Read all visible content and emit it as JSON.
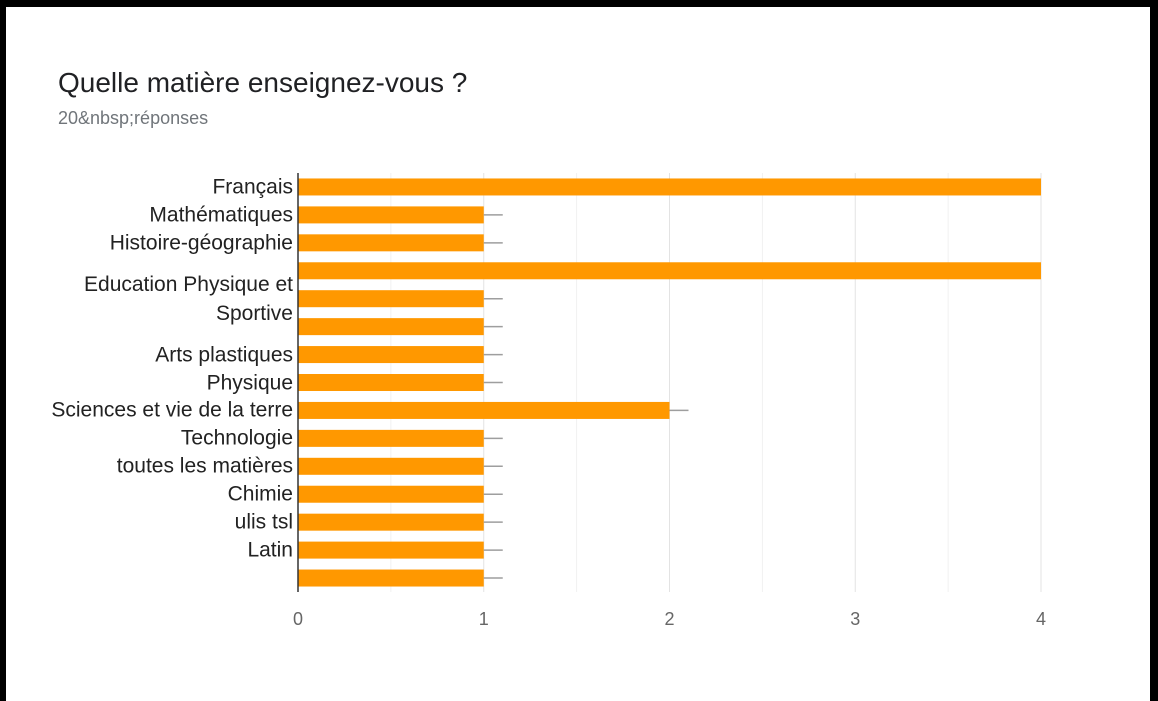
{
  "chart_data": {
    "type": "bar",
    "orientation": "horizontal",
    "title": "Quelle matière enseignez-vous ?",
    "subtitle": "20&nbsp;réponses",
    "categories": [
      "Français",
      "Mathématiques",
      "Histoire-géographie",
      null,
      "Education Physique et Sportive",
      null,
      "Arts plastiques",
      "Physique",
      "Sciences et vie de la terre",
      "Technologie",
      "toutes les matières",
      "Chimie",
      "ulis tsl",
      "Latin",
      null
    ],
    "values": [
      4,
      1,
      1,
      4,
      1,
      1,
      1,
      1,
      2,
      1,
      1,
      1,
      1,
      1,
      1
    ],
    "color": "#ff9800",
    "xlim": [
      0,
      4
    ],
    "xticks": [
      0,
      1,
      2,
      3,
      4
    ],
    "minor_gridlines": [
      0.5,
      1.5,
      2.5,
      3.5
    ],
    "grid": true
  }
}
